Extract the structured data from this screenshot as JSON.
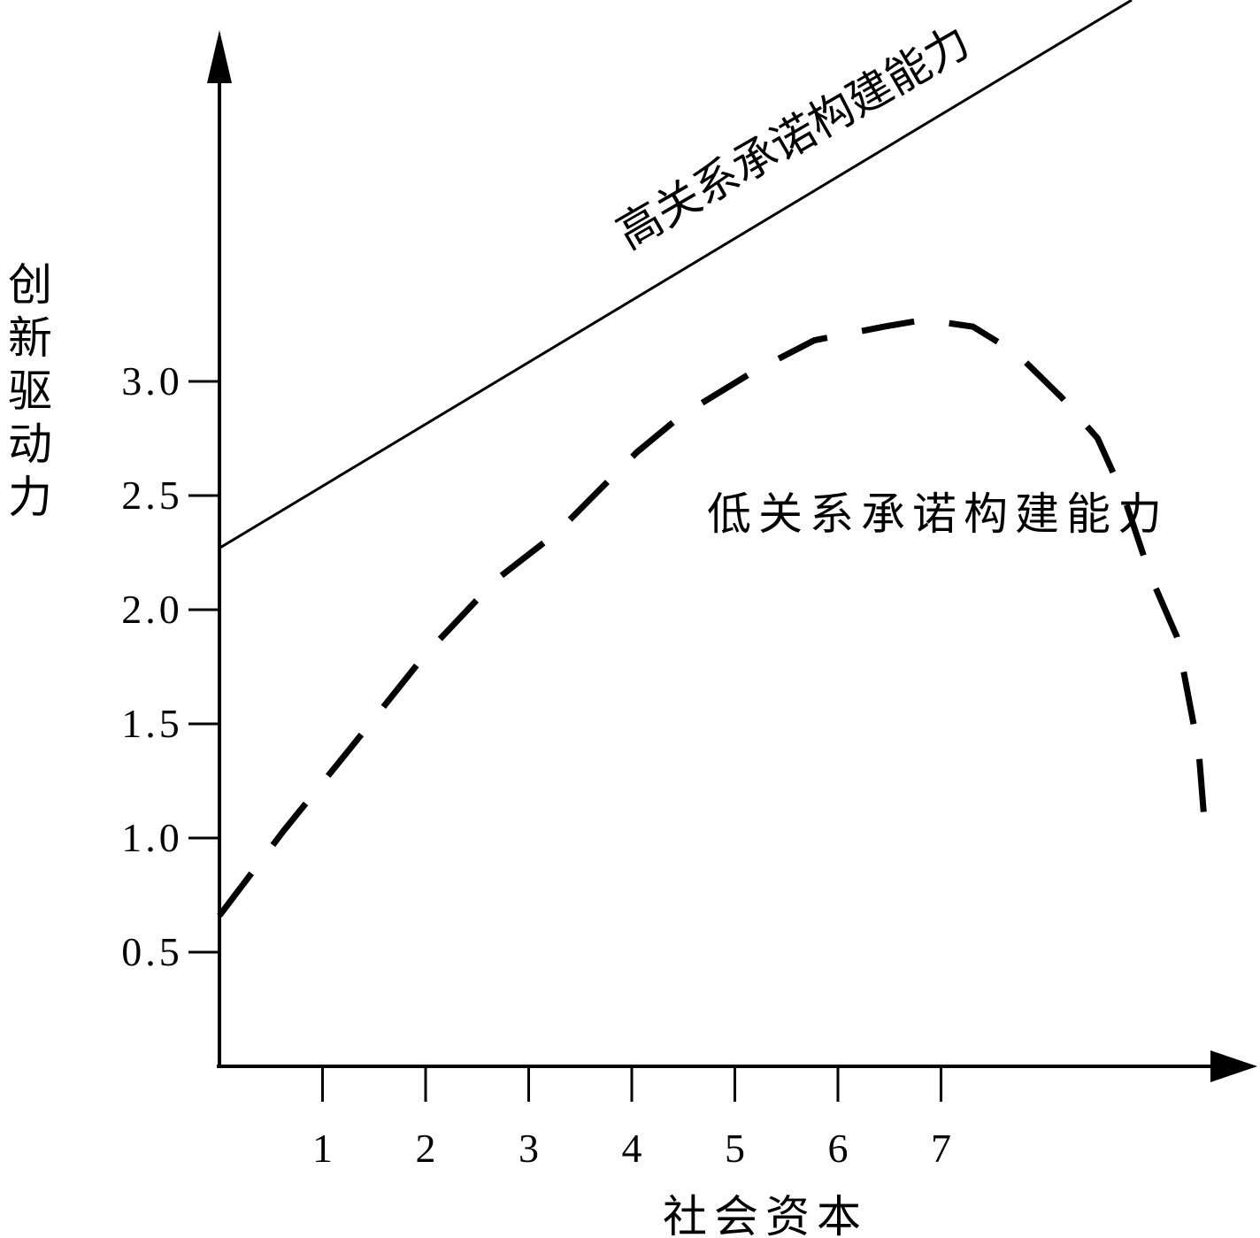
{
  "chart_data": {
    "type": "line",
    "x_label": "社会资本",
    "y_label": "创新驱动力",
    "xlim": [
      0,
      10
    ],
    "ylim": [
      0,
      4.5
    ],
    "xticks": [
      1,
      2,
      3,
      4,
      5,
      6,
      7
    ],
    "yticks": [
      0.5,
      {
        "value": 1,
        "label": "1.0"
      },
      1.5,
      {
        "value": 2,
        "label": "2.0"
      },
      2.5,
      {
        "value": 3,
        "label": "3.0"
      }
    ],
    "grid": false,
    "series": [
      {
        "name": "高关系承诺构建能力",
        "color": "#000000",
        "style": "solid",
        "x": [
          0,
          8.85
        ],
        "y": [
          2.27,
          4.67
        ]
      },
      {
        "name": "低关系承诺构建能力",
        "color": "#000000",
        "style": "dashed",
        "x": [
          0,
          0.62,
          1.3,
          1.99,
          2.68,
          3.28,
          4.05,
          4.48,
          5.17,
          5.77,
          6.45,
          6.84,
          7.31,
          7.74,
          8.17,
          8.52,
          8.77,
          9.03,
          9.29,
          9.5,
          9.55
        ],
        "y": [
          0.66,
          1.03,
          1.41,
          1.8,
          2.13,
          2.34,
          2.69,
          2.85,
          3.04,
          3.18,
          3.24,
          3.27,
          3.24,
          3.12,
          2.93,
          2.75,
          2.5,
          2.15,
          1.88,
          1.38,
          1.1
        ]
      }
    ]
  }
}
